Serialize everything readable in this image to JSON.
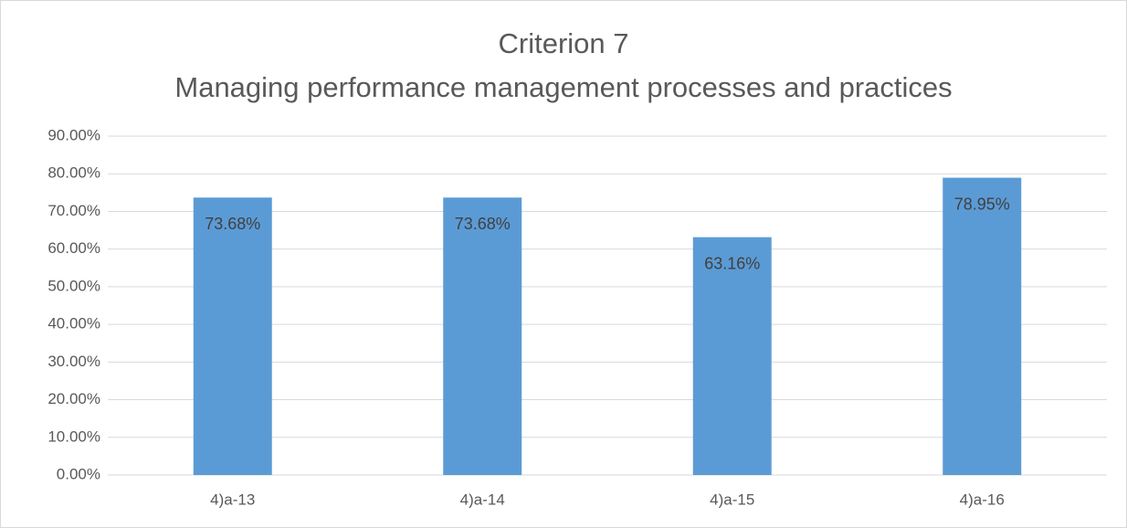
{
  "chart_data": {
    "type": "bar",
    "title": [
      "Criterion 7",
      "Managing performance management processes and practices"
    ],
    "categories": [
      "4)a-13",
      "4)a-14",
      "4)a-15",
      "4)a-16"
    ],
    "values": [
      73.68,
      73.68,
      63.16,
      78.95
    ],
    "value_labels": [
      "73.68%",
      "73.68%",
      "63.16%",
      "78.95%"
    ],
    "color": "#5b9bd5",
    "ylim": [
      0,
      90
    ],
    "yticks": [
      {
        "value": 0,
        "label": "0.00%"
      },
      {
        "value": 10,
        "label": "10.00%"
      },
      {
        "value": 20,
        "label": "20.00%"
      },
      {
        "value": 30,
        "label": "30.00%"
      },
      {
        "value": 40,
        "label": "40.00%"
      },
      {
        "value": 50,
        "label": "50.00%"
      },
      {
        "value": 60,
        "label": "60.00%"
      },
      {
        "value": 70,
        "label": "70.00%"
      },
      {
        "value": 80,
        "label": "80.00%"
      },
      {
        "value": 90,
        "label": "90.00%"
      }
    ],
    "grid": true
  }
}
